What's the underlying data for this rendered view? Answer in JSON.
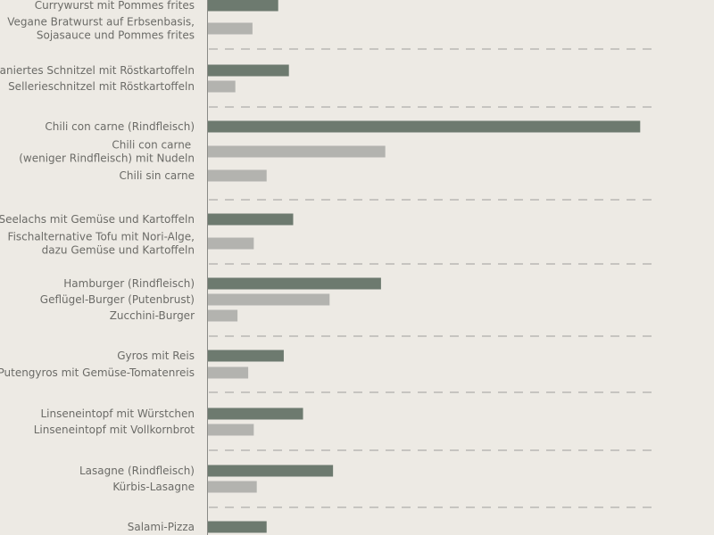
{
  "colors": {
    "background": "#edeae4",
    "primary_bar": "#6d7a6f",
    "alternative_bar": "#b3b3af",
    "axis": "#8a8a86",
    "separator": "#9f9f9b",
    "label_text": "#6b6b67"
  },
  "chart_data": {
    "type": "bar",
    "orientation": "horizontal",
    "title": "",
    "xlabel": "",
    "ylabel": "",
    "x_axis_ticks_visible": false,
    "grid": false,
    "cropped": "top and bottom edges are cut off",
    "groups": [
      {
        "items": [
          {
            "label": [
              "Currywurst mit Pommes frites"
            ],
            "value": 1.65,
            "kind": "primary"
          },
          {
            "label": [
              "Vegane Bratwurst auf Erbsenbasis,",
              "Sojasauce und Pommes frites"
            ],
            "value": 1.05,
            "kind": "alternative"
          }
        ]
      },
      {
        "items": [
          {
            "label": [
              "Paniertes Schnitzel mit Röstkartoffeln"
            ],
            "value": 1.9,
            "kind": "primary"
          },
          {
            "label": [
              "Sellerieschnitzel mit Röstkartoffeln"
            ],
            "value": 0.65,
            "kind": "alternative"
          }
        ]
      },
      {
        "items": [
          {
            "label": [
              "Chili con carne (Rindfleisch)"
            ],
            "value": 10.1,
            "kind": "primary"
          },
          {
            "label": [
              "Chili con carne ",
              "(weniger Rindfleisch) mit Nudeln"
            ],
            "value": 4.15,
            "kind": "alternative"
          },
          {
            "label": [
              "Chili sin carne"
            ],
            "value": 1.38,
            "kind": "alternative"
          }
        ]
      },
      {
        "items": [
          {
            "label": [
              "Seelachs mit Gemüse und Kartoffeln"
            ],
            "value": 2.0,
            "kind": "primary"
          },
          {
            "label": [
              "Fischalternative Tofu mit Nori-Alge,",
              "dazu Gemüse und Kartoffeln"
            ],
            "value": 1.08,
            "kind": "alternative"
          }
        ]
      },
      {
        "items": [
          {
            "label": [
              "Hamburger (Rindfleisch)"
            ],
            "value": 4.05,
            "kind": "primary"
          },
          {
            "label": [
              "Geflügel-Burger (Putenbrust)"
            ],
            "value": 2.85,
            "kind": "alternative"
          },
          {
            "label": [
              "Zucchini-Burger"
            ],
            "value": 0.7,
            "kind": "alternative"
          }
        ]
      },
      {
        "items": [
          {
            "label": [
              "Gyros mit Reis"
            ],
            "value": 1.78,
            "kind": "primary"
          },
          {
            "label": [
              "Putengyros mit Gemüse-Tomatenreis"
            ],
            "value": 0.95,
            "kind": "alternative"
          }
        ]
      },
      {
        "items": [
          {
            "label": [
              "Linseneintopf mit Würstchen"
            ],
            "value": 2.23,
            "kind": "primary"
          },
          {
            "label": [
              "Linseneintopf mit Vollkornbrot"
            ],
            "value": 1.08,
            "kind": "alternative"
          }
        ]
      },
      {
        "items": [
          {
            "label": [
              "Lasagne (Rindfleisch)"
            ],
            "value": 2.93,
            "kind": "primary"
          },
          {
            "label": [
              "Kürbis-Lasagne"
            ],
            "value": 1.15,
            "kind": "alternative"
          }
        ]
      },
      {
        "items": [
          {
            "label": [
              "Salami-Pizza"
            ],
            "value": 1.38,
            "kind": "primary"
          }
        ]
      }
    ]
  }
}
